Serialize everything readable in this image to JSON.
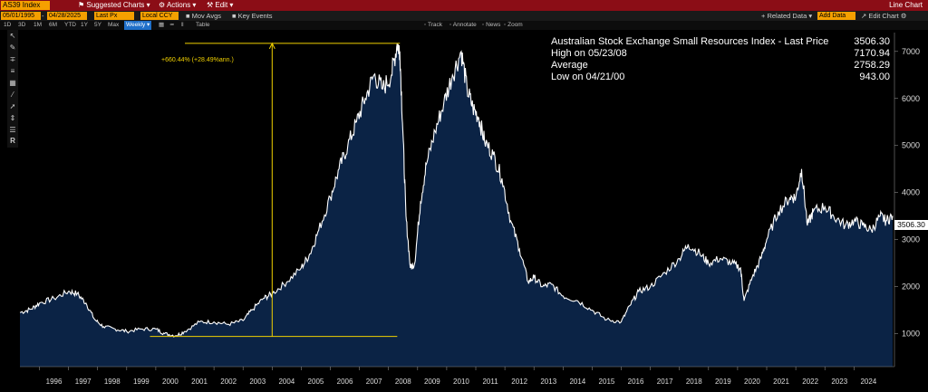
{
  "topbar": {
    "ticker": "AS39 Index",
    "menu": [
      {
        "label": "⚑ Suggested Charts ▾"
      },
      {
        "label": "⚙ Actions ▾"
      },
      {
        "label": "⚒ Edit ▾"
      }
    ],
    "chart_type": "Line Chart"
  },
  "bar2": {
    "start_date": "05/01/1995",
    "end_date": "04/28/2025",
    "field": "Last Px",
    "currency": "Local CCY",
    "mov_avgs": "Mov Avgs",
    "key_events": "Key Events",
    "related_data": "+ Related Data ▾",
    "add_data": "Add Data",
    "edit_chart": "↗ Edit Chart ⚙"
  },
  "bar3": {
    "ranges": [
      "1D",
      "3D",
      "1M",
      "6M",
      "YTD",
      "1Y",
      "5Y",
      "Max"
    ],
    "period": "Weekly ▾",
    "table": "Table",
    "track": "◦ Track",
    "annotate": "◦ Annotate",
    "news": "◦ News",
    "zoom": "◦ Zoom"
  },
  "legend": {
    "title": "Australian Stock Exchange Small Resources Index - Last Price",
    "last_value": "3506.30",
    "rows": [
      {
        "label": "High on 05/23/08",
        "value": "7170.94"
      },
      {
        "label": "Average",
        "value": "2758.29"
      },
      {
        "label": "Low on 04/21/00",
        "value": "943.00"
      }
    ]
  },
  "annotation": {
    "text": "+660.44% (+28.49%ann.)"
  },
  "last_price_tag": "3506.30",
  "colors": {
    "line": "#ffffff",
    "fill": "#0b2345",
    "annotation": "#f0d000",
    "title_bar": "#8b0d16",
    "field": "#f5a000"
  },
  "chart_data": {
    "type": "area",
    "title": "Australian Stock Exchange Small Resources Index - Last Price",
    "xlabel": "",
    "ylabel": "",
    "x_ticks": [
      "1996",
      "1997",
      "1998",
      "1999",
      "2000",
      "2001",
      "2002",
      "2003",
      "2004",
      "2005",
      "2006",
      "2007",
      "2008",
      "2009",
      "2010",
      "2011",
      "2012",
      "2013",
      "2014",
      "2015",
      "2016",
      "2017",
      "2018",
      "2019",
      "2020",
      "2021",
      "2022",
      "2023",
      "2024"
    ],
    "y_ticks": [
      1000,
      2000,
      3000,
      4000,
      5000,
      6000,
      7000
    ],
    "xlim": [
      1995.33,
      2025.33
    ],
    "ylim": [
      300,
      7400
    ],
    "series": [
      {
        "name": "AS39 Index",
        "x": [
          1995.33,
          1995.7,
          1996.0,
          1996.5,
          1997.0,
          1997.3,
          1997.6,
          1997.9,
          1998.2,
          1998.6,
          1999.0,
          1999.5,
          2000.0,
          2000.3,
          2000.7,
          2001.0,
          2001.5,
          2002.0,
          2002.5,
          2003.0,
          2003.3,
          2003.7,
          2004.0,
          2004.5,
          2005.0,
          2005.3,
          2005.6,
          2006.0,
          2006.3,
          2006.6,
          2006.9,
          2007.2,
          2007.5,
          2007.8,
          2008.1,
          2008.3,
          2008.39,
          2008.5,
          2008.6,
          2008.75,
          2008.9,
          2009.1,
          2009.3,
          2009.6,
          2009.9,
          2010.2,
          2010.5,
          2010.7,
          2010.9,
          2011.1,
          2011.3,
          2011.6,
          2011.9,
          2012.2,
          2012.5,
          2012.8,
          2013.0,
          2013.3,
          2013.6,
          2014.0,
          2014.5,
          2015.0,
          2015.5,
          2016.0,
          2016.3,
          2016.6,
          2017.0,
          2017.5,
          2018.0,
          2018.3,
          2018.7,
          2019.0,
          2019.4,
          2019.8,
          2020.1,
          2020.22,
          2020.5,
          2020.8,
          2021.0,
          2021.4,
          2021.8,
          2022.0,
          2022.2,
          2022.4,
          2022.6,
          2023.0,
          2023.3,
          2023.7,
          2024.0,
          2024.3,
          2024.6,
          2024.9,
          2025.1,
          2025.33
        ],
        "values": [
          1450,
          1520,
          1650,
          1750,
          1900,
          1850,
          1650,
          1300,
          1150,
          1100,
          1050,
          1100,
          1100,
          1000,
          960,
          1050,
          1250,
          1250,
          1200,
          1280,
          1500,
          1750,
          1850,
          2100,
          2400,
          2700,
          3200,
          3900,
          4500,
          5000,
          5500,
          6000,
          6500,
          6200,
          6500,
          7170,
          7000,
          5200,
          3500,
          2400,
          2500,
          3800,
          4600,
          5300,
          5900,
          6500,
          7000,
          6200,
          5800,
          5600,
          5100,
          4800,
          4300,
          3400,
          2800,
          2100,
          2200,
          2000,
          2050,
          1800,
          1700,
          1500,
          1300,
          1250,
          1600,
          1900,
          2000,
          2300,
          2600,
          2900,
          2700,
          2500,
          2600,
          2500,
          2400,
          1700,
          2200,
          2600,
          3000,
          3600,
          3900,
          3900,
          4500,
          3300,
          3600,
          3700,
          3500,
          3300,
          3400,
          3300,
          3200,
          3500,
          3400,
          3506
        ]
      }
    ]
  }
}
